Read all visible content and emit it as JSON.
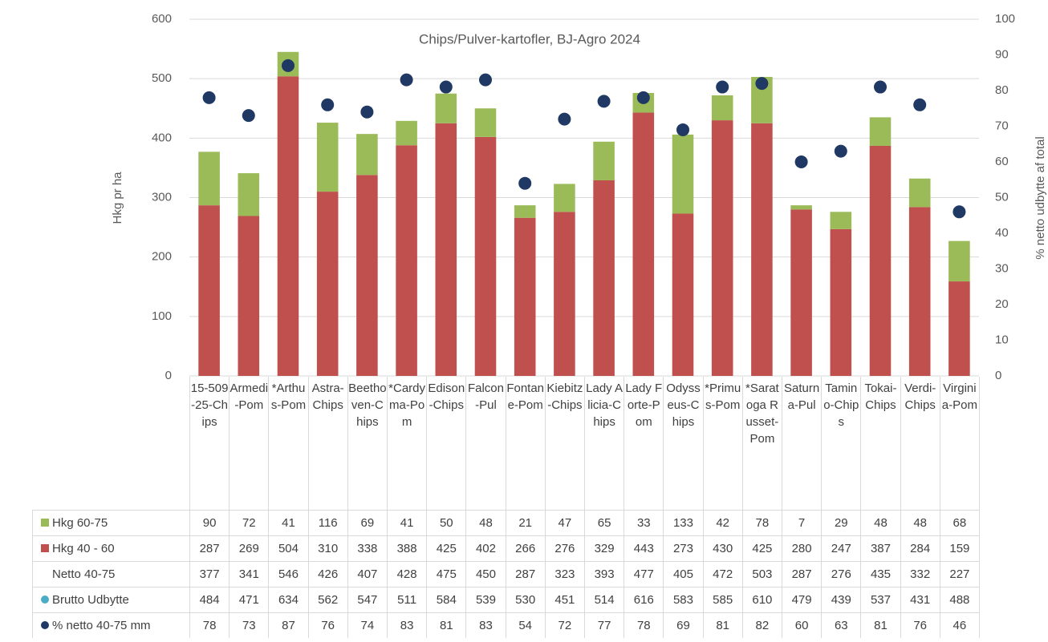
{
  "chart_data": {
    "type": "bar",
    "stacked": true,
    "title": "Chips/Pulver-kartofler, BJ-Agro 2024",
    "ylabel": "Hkg pr ha",
    "y2label": "% netto udbytte  af  total",
    "categories": [
      "15-509-25-Chips",
      "Armedi-Pom",
      "*Arthus-Pom",
      "Astra-Chips",
      "Beethoven-Chips",
      "*Cardyma-Pom",
      "Edison-Chips",
      "Falcon-Pul",
      "Fontane-Pom",
      "Kiebitz-Chips",
      "Lady Alicia-Chips",
      "Lady Forte-Pom",
      "Odysseus-Chips",
      "*Primus-Pom",
      "*Saratoga Russet-Pom",
      "Saturna-Pul",
      "Tamino-Chips",
      "Tokai-Chips",
      "Verdi-Chips",
      "Virginia-Pom"
    ],
    "series": [
      {
        "name": "Hkg 60-75",
        "color": "#9bbb59",
        "type": "bar",
        "values": [
          90,
          72,
          41,
          116,
          69,
          41,
          50,
          48,
          21,
          47,
          65,
          33,
          133,
          42,
          78,
          7,
          29,
          48,
          48,
          68
        ]
      },
      {
        "name": "Hkg 40 - 60",
        "color": "#c0504d",
        "type": "bar",
        "values": [
          287,
          269,
          504,
          310,
          338,
          388,
          425,
          402,
          266,
          276,
          329,
          443,
          273,
          430,
          425,
          280,
          247,
          387,
          284,
          159
        ]
      },
      {
        "name": "Netto 40-75",
        "type": "none",
        "values": [
          377,
          341,
          546,
          426,
          407,
          428,
          475,
          450,
          287,
          323,
          393,
          477,
          405,
          472,
          503,
          287,
          276,
          435,
          332,
          227
        ]
      },
      {
        "name": "Brutto Udbytte",
        "color": "#4bacc6",
        "type": "none",
        "values": [
          484,
          471,
          634,
          562,
          547,
          511,
          584,
          539,
          530,
          451,
          514,
          616,
          583,
          585,
          610,
          479,
          439,
          537,
          431,
          488
        ]
      },
      {
        "name": "% netto 40-75 mm",
        "color": "#1f3864",
        "type": "scatter",
        "axis": "y2",
        "values": [
          78,
          73,
          87,
          76,
          74,
          83,
          81,
          83,
          54,
          72,
          77,
          78,
          69,
          81,
          82,
          60,
          63,
          81,
          76,
          46
        ]
      }
    ],
    "ylim": [
      0,
      600
    ],
    "yticks": [
      0,
      100,
      200,
      300,
      400,
      500,
      600
    ],
    "y2lim": [
      0,
      100
    ],
    "y2ticks": [
      0,
      10,
      20,
      30,
      40,
      50,
      60,
      70,
      80,
      90,
      100
    ],
    "grid": true
  }
}
